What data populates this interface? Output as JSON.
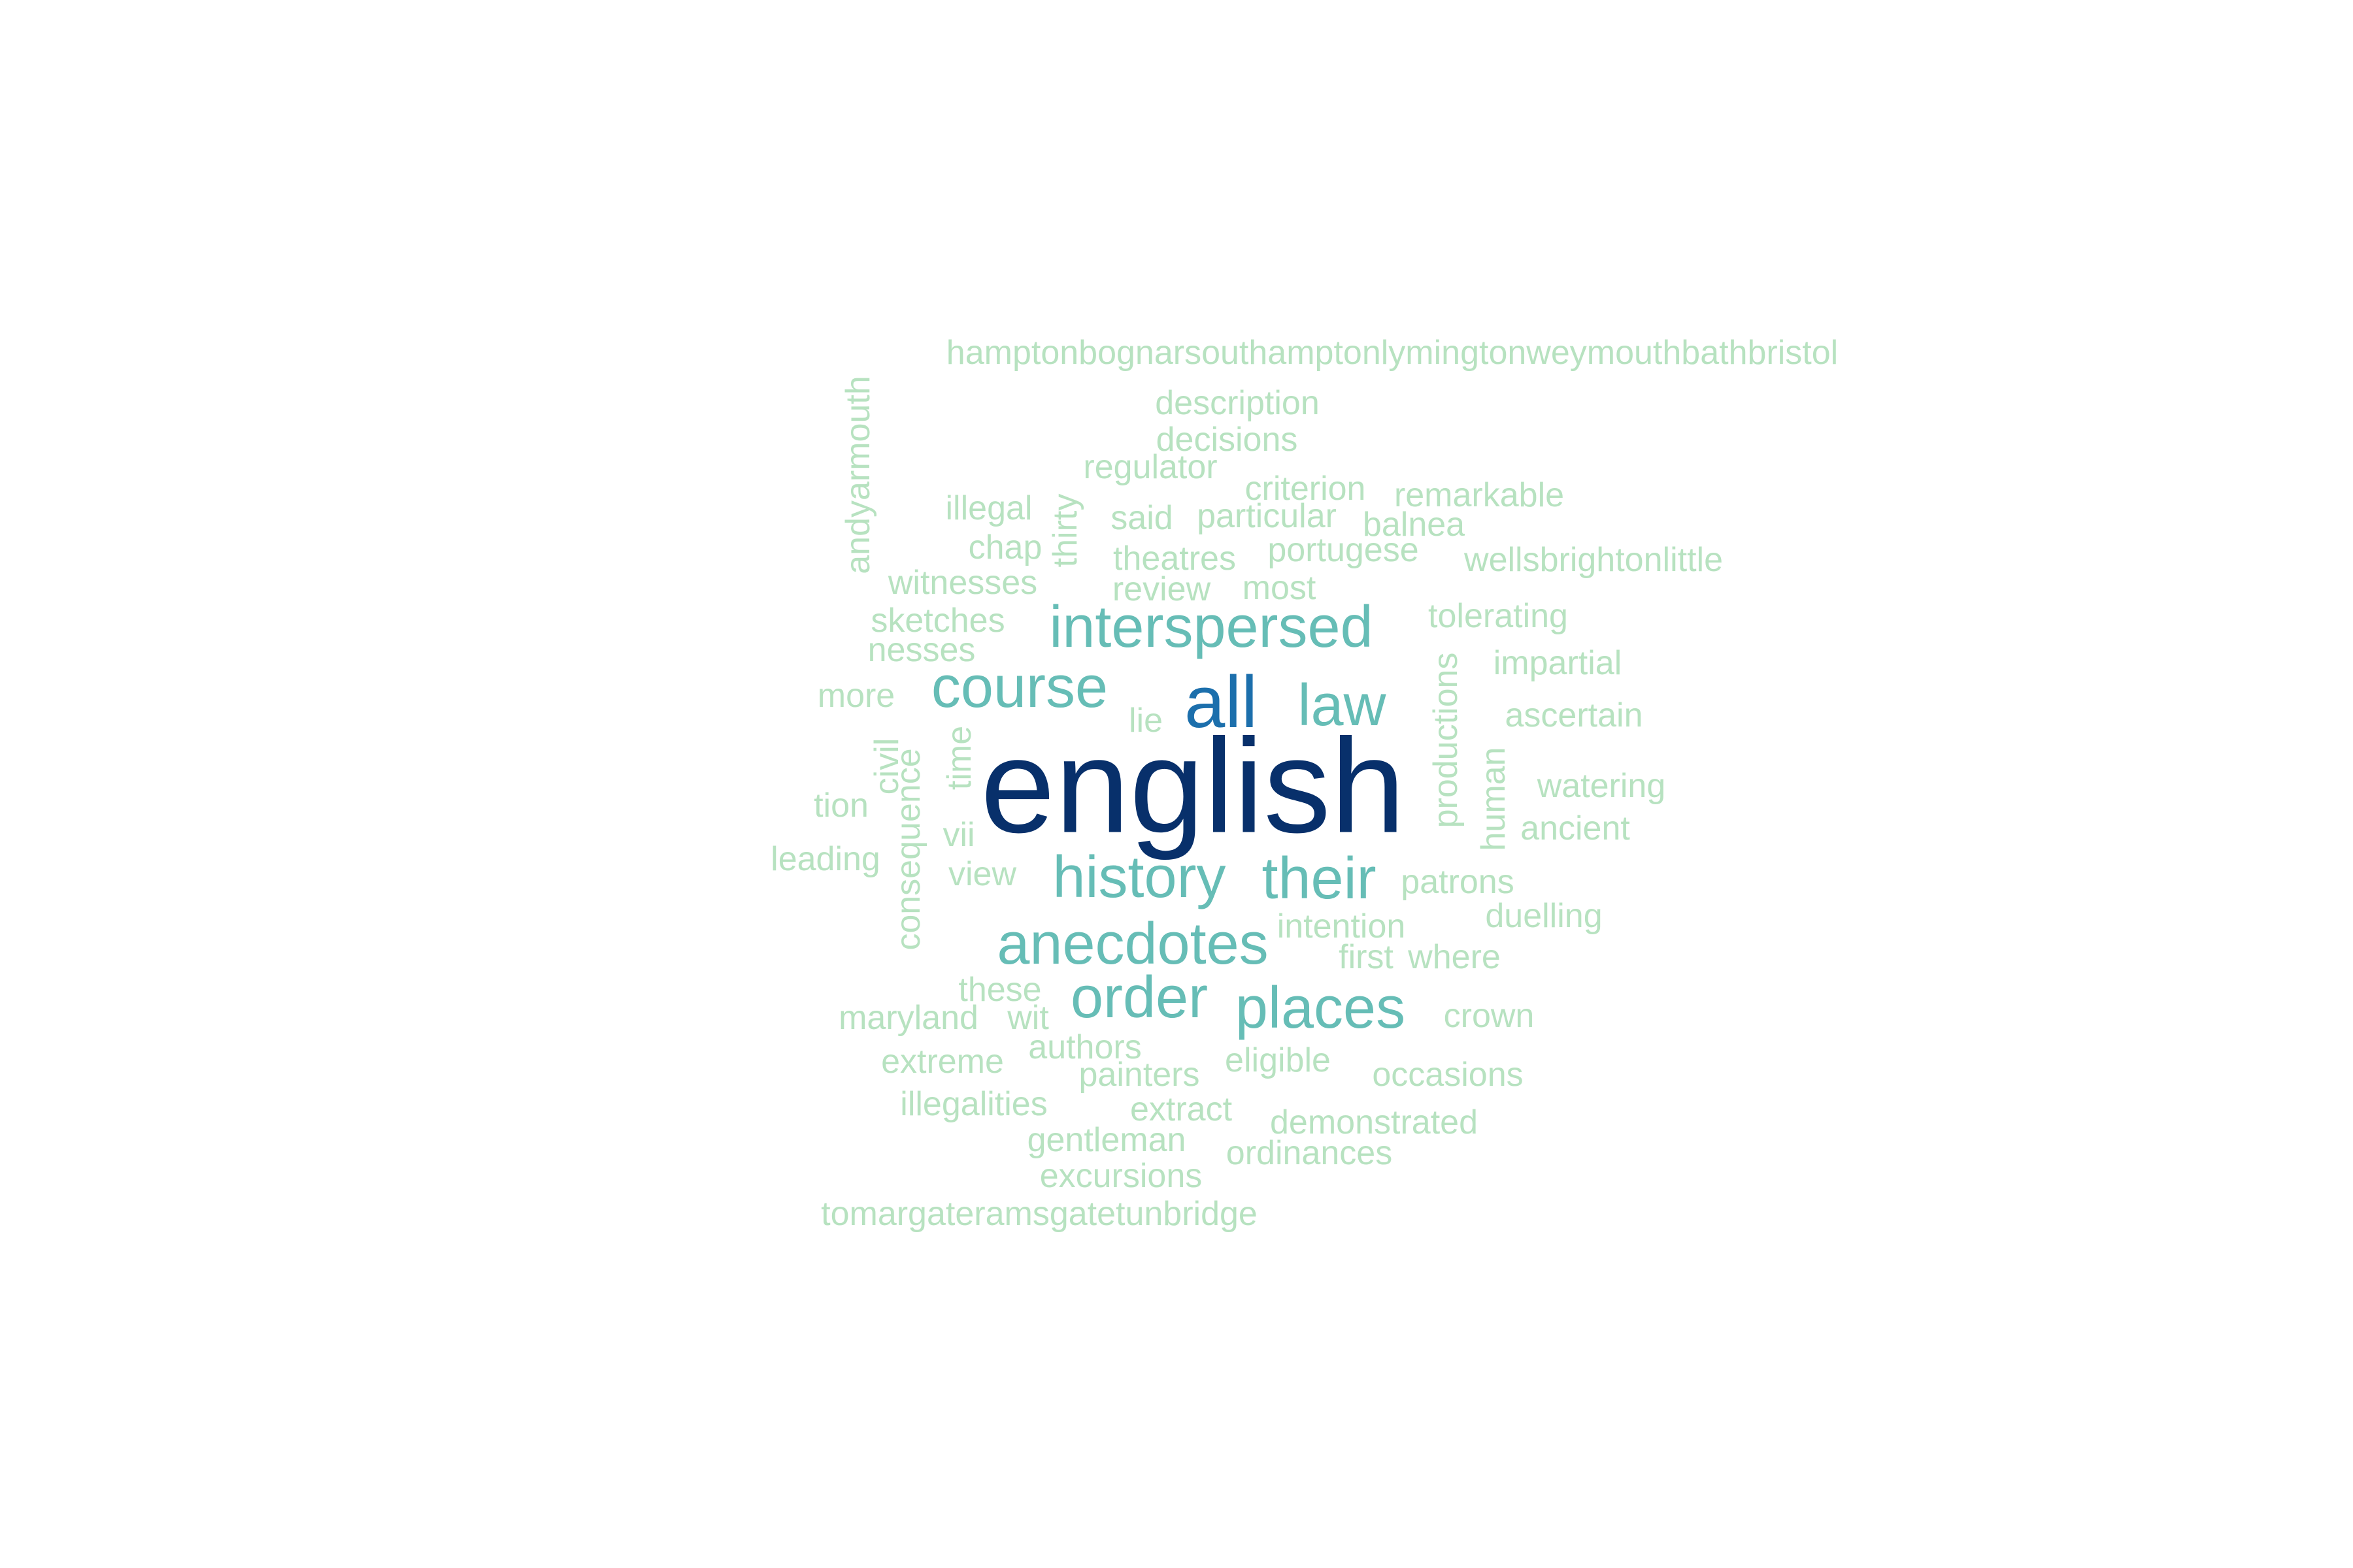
{
  "colors": {
    "tier1": "#08306b",
    "tier2": "#1c6fac",
    "tier3": "#66bdb6",
    "tier4": "#b7e2c0"
  },
  "words": {
    "english": "english",
    "all": "all",
    "interspersed": "interspersed",
    "course": "course",
    "law": "law",
    "history": "history",
    "their": "their",
    "anecdotes": "anecdotes",
    "order": "order",
    "places": "places",
    "hampton": "hamptonbognarsouthamptonlymingtonweymouthbathbristol",
    "description": "description",
    "decisions": "decisions",
    "regulator": "regulator",
    "criterion": "criterion",
    "remarkable": "remarkable",
    "illegal": "illegal",
    "said": "said",
    "particular": "particular",
    "balnea": "balnea",
    "chap": "chap",
    "thirty": "thirty",
    "theatres": "theatres",
    "portugese": "portugese",
    "wellsbrightonlittle": "wellsbrightonlittle",
    "andyarmouth": "andyarmouth",
    "witnesses": "witnesses",
    "review": "review",
    "most": "most",
    "sketches": "sketches",
    "tolerating": "tolerating",
    "nesses": "nesses",
    "impartial": "impartial",
    "more": "more",
    "lie": "lie",
    "ascertain": "ascertain",
    "productions": "productions",
    "civil": "civil",
    "time": "time",
    "tion": "tion",
    "consequence": "consequence",
    "watering": "watering",
    "human": "human",
    "ancient": "ancient",
    "vii": "vii",
    "leading": "leading",
    "view": "view",
    "patrons": "patrons",
    "intention": "intention",
    "duelling": "duelling",
    "first": "first",
    "where": "where",
    "these": "these",
    "maryland": "maryland",
    "wit": "wit",
    "crown": "crown",
    "authors": "authors",
    "extreme": "extreme",
    "eligible": "eligible",
    "painters": "painters",
    "occasions": "occasions",
    "illegalities": "illegalities",
    "extract": "extract",
    "demonstrated": "demonstrated",
    "gentleman": "gentleman",
    "ordinances": "ordinances",
    "excursions": "excursions",
    "tomargate": "tomargateramsgatetunbridge"
  }
}
